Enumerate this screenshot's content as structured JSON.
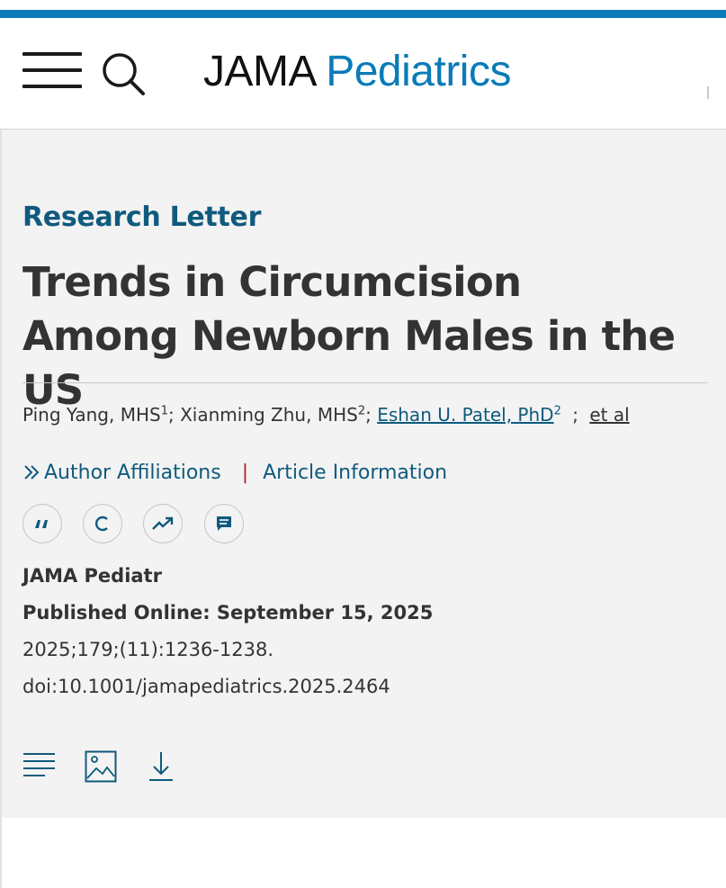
{
  "header": {
    "logo_part1": "JAMA",
    "logo_part2": "Pediatrics",
    "menu_icon": "hamburger-menu-icon",
    "search_icon": "search-icon"
  },
  "article": {
    "type": "Research Letter",
    "title": "Trends in Circumcision Among Newborn Males in the US",
    "authors": [
      {
        "name": "Ping Yang, MHS",
        "sup": "1",
        "linked": false
      },
      {
        "name": "Xianming Zhu, MHS",
        "sup": "2",
        "linked": false
      },
      {
        "name": "Eshan U. Patel, PhD",
        "sup": "2",
        "linked": true
      }
    ],
    "et_al": "et al",
    "author_affiliations": "Author Affiliations",
    "article_information": "Article Information",
    "tools": [
      "quote-icon",
      "copyright-icon",
      "trending-icon",
      "comment-icon"
    ],
    "journal": "JAMA Pediatr",
    "published": "Published Online: September 15, 2025",
    "citation": "2025;179;(11):1236-1238.",
    "doi": "doi:10.1001/jamapediatrics.2025.2464",
    "bottom_icons": [
      "text-lines-icon",
      "image-icon",
      "download-icon"
    ]
  },
  "colors": {
    "accent_blue": "#0a7bb8",
    "heading_blue": "#0f5a7d",
    "separator_red": "#b0252a"
  }
}
